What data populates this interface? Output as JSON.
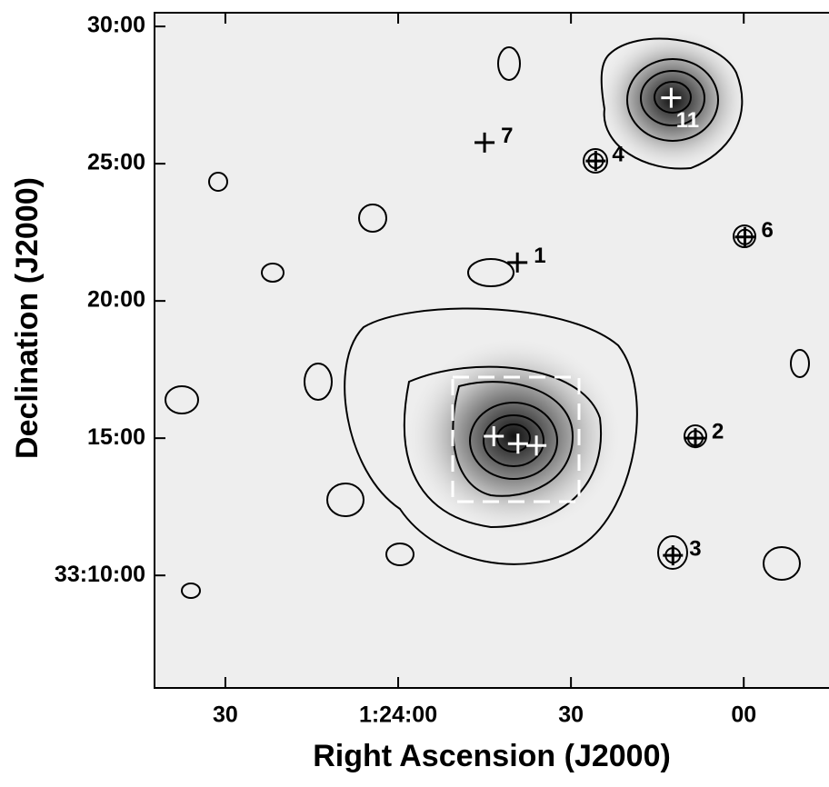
{
  "chart_data": {
    "type": "scatter",
    "xlabel": "Right Ascension (J2000)",
    "ylabel": "Declination (J2000)",
    "x": [
      5025.0,
      5005.7,
      4992.6,
      4979.8,
      5019.3,
      4988.4,
      4992.3,
      5023.4,
      5019.2,
      5016.0
    ],
    "y": [
      25.77,
      25.1,
      27.4,
      22.33,
      21.4,
      15.0,
      10.73,
      15.07,
      14.8,
      14.73
    ],
    "labels": [
      "7",
      "4",
      "11",
      "6",
      "1",
      "2",
      "3",
      null,
      null,
      null
    ],
    "marker_colors": [
      "#000",
      "#000",
      "#fff",
      "#000",
      "#000",
      "#000",
      "#000",
      "#fff",
      "#fff",
      "#fff"
    ],
    "circled": [
      false,
      true,
      false,
      true,
      false,
      true,
      true,
      false,
      false,
      false
    ],
    "xlim": [
      5082.3,
      4965.2
    ],
    "ylim": [
      5.9,
      30.5
    ],
    "xticks": [
      {
        "value": 5070,
        "label": "30"
      },
      {
        "value": 5040,
        "label": "1:24:00"
      },
      {
        "value": 5010,
        "label": "30"
      },
      {
        "value": 4980,
        "label": "00"
      }
    ],
    "yticks": [
      {
        "value": 30,
        "label": "30:00"
      },
      {
        "value": 25,
        "label": "25:00"
      },
      {
        "value": 20,
        "label": "20:00"
      },
      {
        "value": 15,
        "label": "15:00"
      },
      {
        "value": 10,
        "label": "33:10:00"
      }
    ]
  }
}
